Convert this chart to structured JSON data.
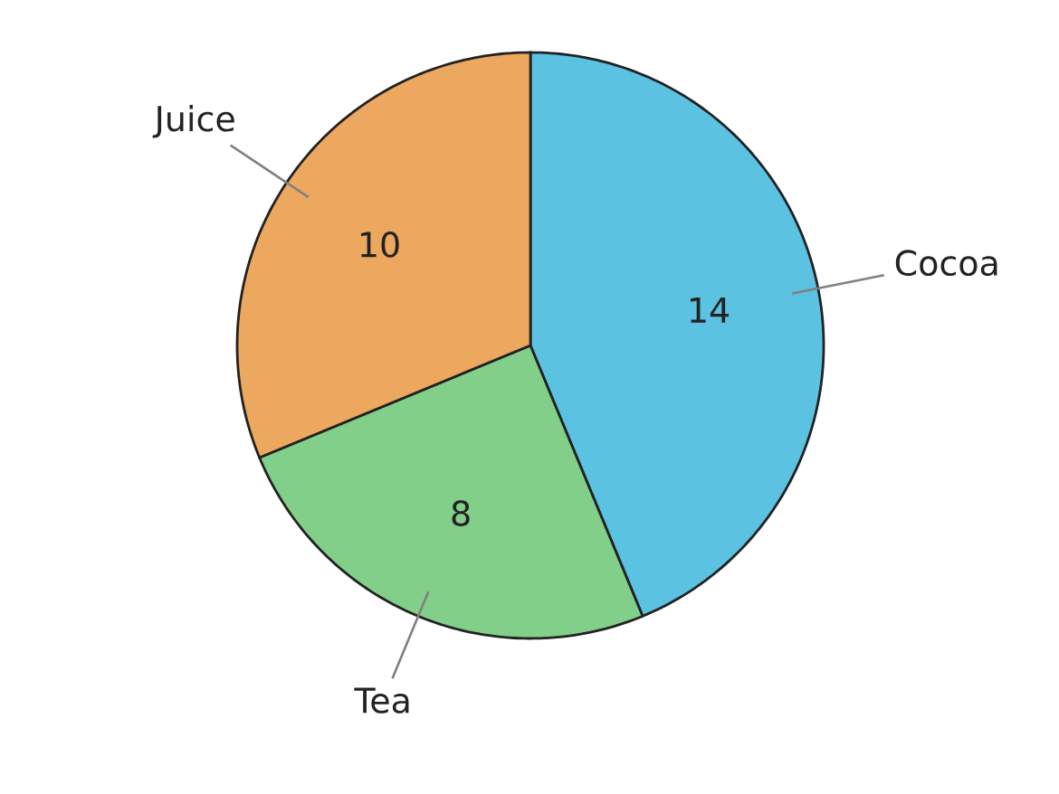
{
  "chart_data": {
    "type": "pie",
    "categories": [
      "Cocoa",
      "Tea",
      "Juice"
    ],
    "values": [
      14,
      8,
      10
    ],
    "colors": [
      "#5bc2e2",
      "#82cf8a",
      "#eca85e"
    ],
    "data_labels": true
  }
}
